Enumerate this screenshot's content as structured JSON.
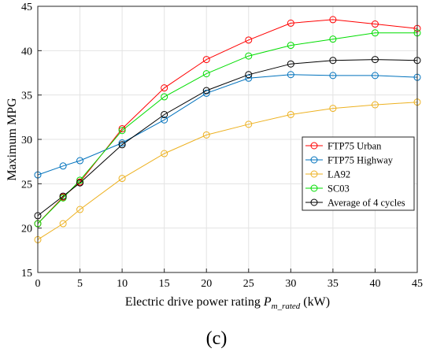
{
  "chart_data": {
    "type": "line",
    "x": [
      0,
      3,
      5,
      10,
      15,
      20,
      25,
      30,
      35,
      40,
      45
    ],
    "xticks": [
      "0",
      "5",
      "10",
      "15",
      "20",
      "25",
      "30",
      "35",
      "40",
      "45"
    ],
    "yticks": [
      "15",
      "20",
      "25",
      "30",
      "35",
      "40",
      "45"
    ],
    "xlim": [
      0,
      45
    ],
    "ylim": [
      15,
      45
    ],
    "grid": true,
    "xlabel_main": "Electric drive power rating ",
    "xlabel_var": "P",
    "xlabel_sub": "m_rated",
    "xlabel_unit": " (kW)",
    "ylabel": "Maximum MPG",
    "panel_label": "(c)",
    "legend_position": "right",
    "series": [
      {
        "name": "FTP75 Urban",
        "color": "#ff0000",
        "values": [
          20.5,
          23.5,
          25.2,
          31.2,
          35.8,
          39.0,
          41.2,
          43.1,
          43.5,
          43.0,
          42.5
        ]
      },
      {
        "name": "FTP75 Highway",
        "color": "#0072bd",
        "values": [
          26.0,
          27.0,
          27.6,
          29.6,
          32.2,
          35.2,
          36.9,
          37.3,
          37.2,
          37.2,
          37.0
        ]
      },
      {
        "name": "LA92",
        "color": "#edb120",
        "values": [
          18.7,
          20.5,
          22.1,
          25.6,
          28.4,
          30.5,
          31.7,
          32.8,
          33.5,
          33.9,
          34.2
        ]
      },
      {
        "name": "SC03",
        "color": "#00dd00",
        "values": [
          20.5,
          23.4,
          25.4,
          31.0,
          34.8,
          37.4,
          39.4,
          40.6,
          41.3,
          42.0,
          42.0
        ]
      },
      {
        "name": "Average of 4 cycles",
        "color": "#000000",
        "values": [
          21.4,
          23.6,
          25.1,
          29.4,
          32.8,
          35.5,
          37.3,
          38.5,
          38.9,
          39.0,
          38.9
        ]
      }
    ]
  }
}
